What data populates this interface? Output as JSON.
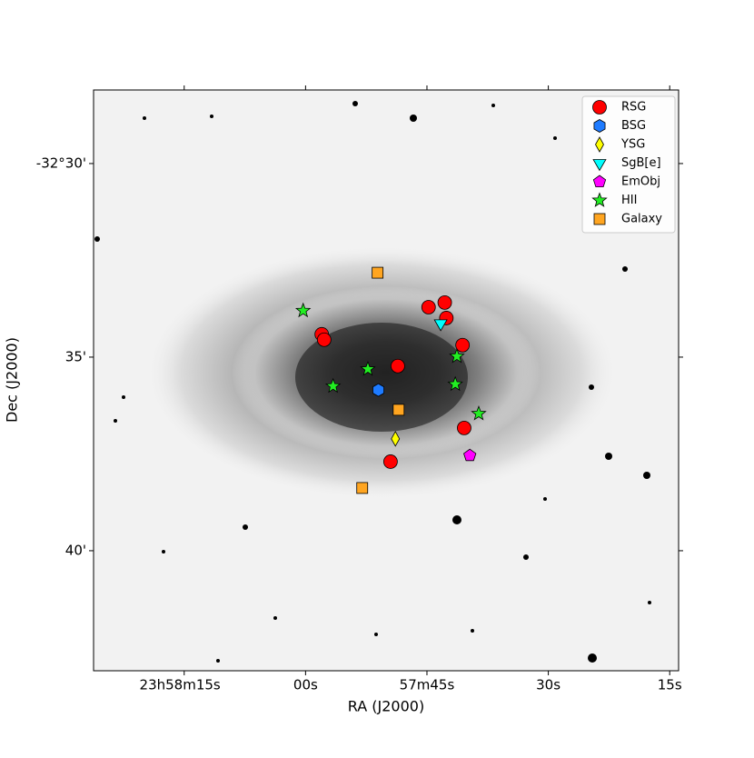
{
  "chart_data": {
    "type": "scatter",
    "xlabel": "RA (J2000)",
    "ylabel": "Dec (J2000)",
    "xlim": [
      26.2,
      -46.1
    ],
    "xticks": [
      {
        "value": 15,
        "label": "23h58m15s"
      },
      {
        "value": 0,
        "label": "00s"
      },
      {
        "value": -15,
        "label": "57m45s"
      },
      {
        "value": -30,
        "label": "30s"
      },
      {
        "value": -45,
        "label": "15s"
      }
    ],
    "ylim": [
      43.1,
      28.1
    ],
    "yticks": [
      {
        "value": 30,
        "label": "-32°30'"
      },
      {
        "value": 35,
        "label": "35'"
      },
      {
        "value": 40,
        "label": "40'"
      }
    ],
    "legend": "upper right",
    "series": [
      {
        "name": "RSG",
        "color": "#ff0000",
        "marker": "circle",
        "x": [
          -15.2,
          -17.2,
          -17.4,
          -19.4,
          -2.0,
          -2.3,
          -11.4,
          -19.6,
          -10.5
        ],
        "y": [
          33.71,
          33.59,
          33.99,
          34.69,
          34.41,
          34.55,
          35.23,
          36.83,
          37.7
        ]
      },
      {
        "name": "BSG",
        "color": "#1e7bff",
        "marker": "hexagon",
        "x": [
          -9.0
        ],
        "y": [
          35.85
        ]
      },
      {
        "name": "YSG",
        "color": "#ffff00",
        "marker": "diamond",
        "x": [
          -11.1
        ],
        "y": [
          37.11
        ]
      },
      {
        "name": "SgB[e]",
        "color": "#00ffff",
        "marker": "triangle-down",
        "x": [
          -16.7
        ],
        "y": [
          34.13
        ]
      },
      {
        "name": "EmObj",
        "color": "#ff00ff",
        "marker": "pentagon",
        "x": [
          -20.3
        ],
        "y": [
          37.54
        ]
      },
      {
        "name": "HII",
        "color": "#22ee22",
        "marker": "star",
        "x": [
          0.3,
          -7.7,
          -3.4,
          -18.7,
          -18.5,
          -21.4
        ],
        "y": [
          33.8,
          35.31,
          35.75,
          34.98,
          35.7,
          36.46
        ]
      },
      {
        "name": "Galaxy",
        "color": "#ffa520",
        "marker": "square",
        "x": [
          -8.9,
          -11.5,
          -7.0
        ],
        "y": [
          32.82,
          36.36,
          38.38
        ]
      }
    ]
  }
}
